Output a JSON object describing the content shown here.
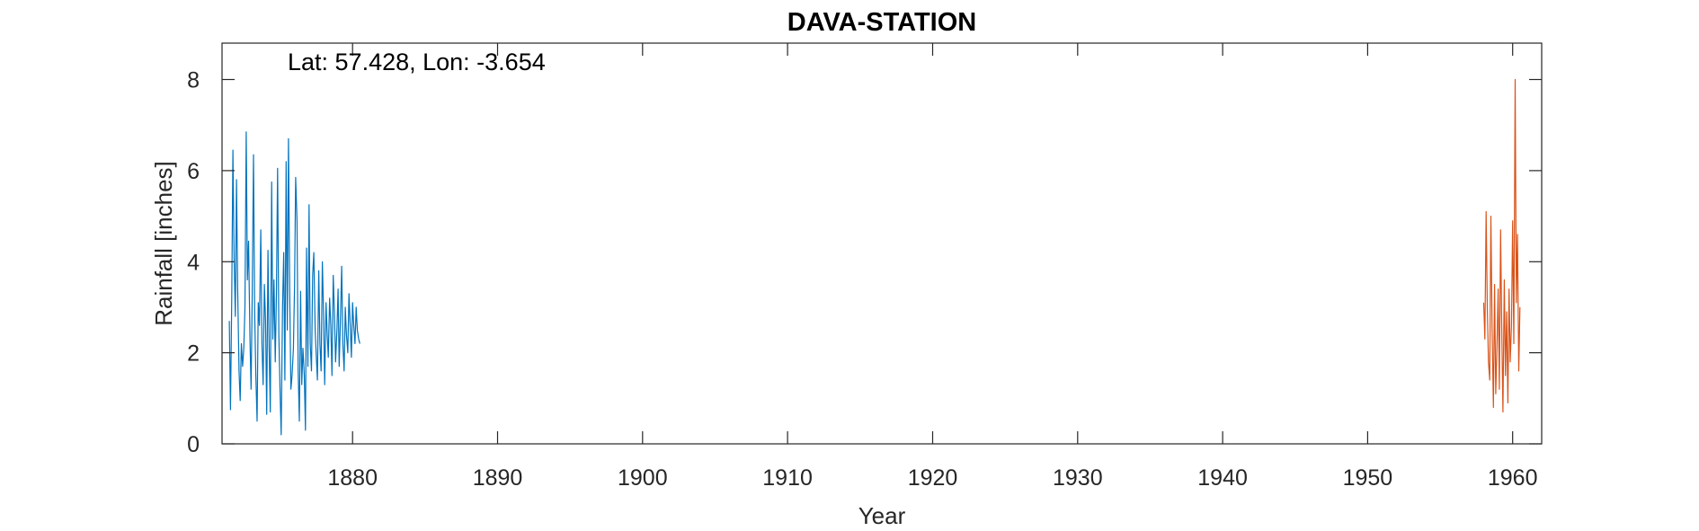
{
  "chart_data": {
    "type": "line",
    "title": "DAVA-STATION",
    "xlabel": "Year",
    "ylabel": "Rainfall [inches]",
    "annotation": "Lat: 57.428, Lon: -3.654",
    "xlim": [
      1871,
      1962
    ],
    "ylim": [
      0,
      8.8
    ],
    "xticks": [
      1880,
      1890,
      1900,
      1910,
      1920,
      1930,
      1940,
      1950,
      1960
    ],
    "yticks": [
      0,
      2,
      4,
      6,
      8
    ],
    "grid": false,
    "legend": "none",
    "series": [
      {
        "color": "#0072BD",
        "x": [
          1871.5,
          1871.58,
          1871.67,
          1871.75,
          1871.83,
          1871.92,
          1872.0,
          1872.08,
          1872.17,
          1872.25,
          1872.33,
          1872.42,
          1872.5,
          1872.58,
          1872.67,
          1872.75,
          1872.83,
          1872.92,
          1873.0,
          1873.08,
          1873.17,
          1873.25,
          1873.33,
          1873.42,
          1873.5,
          1873.58,
          1873.67,
          1873.75,
          1873.83,
          1873.92,
          1874.0,
          1874.08,
          1874.17,
          1874.25,
          1874.33,
          1874.42,
          1874.5,
          1874.58,
          1874.67,
          1874.75,
          1874.83,
          1874.92,
          1875.0,
          1875.08,
          1875.17,
          1875.25,
          1875.33,
          1875.42,
          1875.5,
          1875.58,
          1875.67,
          1875.75,
          1875.83,
          1875.92,
          1876.0,
          1876.08,
          1876.17,
          1876.25,
          1876.33,
          1876.42,
          1876.5,
          1876.58,
          1876.67,
          1876.75,
          1876.83,
          1876.92,
          1877.0,
          1877.08,
          1877.17,
          1877.25,
          1877.33,
          1877.42,
          1877.5,
          1877.58,
          1877.67,
          1877.75,
          1877.83,
          1877.92,
          1878.0,
          1878.08,
          1878.17,
          1878.25,
          1878.33,
          1878.42,
          1878.5,
          1878.58,
          1878.67,
          1878.75,
          1878.83,
          1878.92,
          1879.0,
          1879.08,
          1879.17,
          1879.25,
          1879.33,
          1879.42,
          1879.5,
          1879.58,
          1879.67,
          1879.75,
          1879.83,
          1879.92,
          1880.0,
          1880.08,
          1880.17,
          1880.25,
          1880.33,
          1880.42,
          1880.5
        ],
        "values": [
          2.7,
          0.75,
          3.2,
          6.45,
          4.1,
          2.8,
          5.8,
          3.4,
          1.6,
          0.95,
          2.2,
          1.7,
          2.1,
          3.0,
          6.85,
          3.6,
          4.45,
          2.4,
          1.2,
          3.3,
          6.35,
          2.9,
          1.5,
          0.5,
          3.1,
          2.6,
          4.7,
          2.2,
          1.3,
          3.5,
          2.7,
          0.65,
          4.25,
          2.1,
          0.7,
          5.75,
          2.3,
          3.6,
          1.8,
          3.3,
          6.05,
          2.4,
          1.2,
          0.2,
          3.0,
          4.2,
          1.4,
          6.2,
          2.5,
          6.7,
          3.3,
          1.2,
          1.5,
          2.1,
          3.5,
          5.85,
          4.9,
          1.6,
          0.5,
          3.35,
          1.3,
          2.1,
          1.5,
          0.3,
          4.3,
          1.7,
          5.25,
          2.2,
          1.6,
          3.7,
          4.2,
          2.5,
          1.9,
          1.4,
          3.8,
          2.2,
          1.6,
          4.0,
          2.9,
          1.3,
          3.1,
          2.4,
          1.9,
          3.2,
          2.6,
          1.5,
          3.7,
          2.9,
          1.8,
          2.5,
          3.4,
          1.7,
          2.8,
          3.9,
          2.2,
          1.6,
          3.0,
          2.4,
          2.0,
          3.3,
          2.7,
          1.9,
          3.1,
          2.6,
          2.2,
          3.0,
          2.5,
          2.3,
          2.2
        ]
      },
      {
        "color": "#D95319",
        "x": [
          1958.0,
          1958.08,
          1958.17,
          1958.25,
          1958.33,
          1958.42,
          1958.5,
          1958.58,
          1958.67,
          1958.75,
          1958.83,
          1958.92,
          1959.0,
          1959.08,
          1959.17,
          1959.25,
          1959.33,
          1959.42,
          1959.5,
          1959.58,
          1959.67,
          1959.75,
          1959.83,
          1959.92,
          1960.0,
          1960.08,
          1960.17,
          1960.25,
          1960.33,
          1960.42,
          1960.5
        ],
        "values": [
          3.1,
          2.3,
          5.1,
          3.0,
          1.8,
          1.4,
          5.0,
          2.6,
          0.8,
          3.5,
          1.1,
          2.2,
          3.4,
          1.2,
          4.7,
          2.5,
          0.7,
          3.6,
          1.5,
          2.9,
          0.9,
          3.4,
          1.8,
          2.6,
          4.9,
          2.2,
          8.0,
          3.1,
          4.6,
          1.6,
          3.0
        ]
      }
    ]
  }
}
